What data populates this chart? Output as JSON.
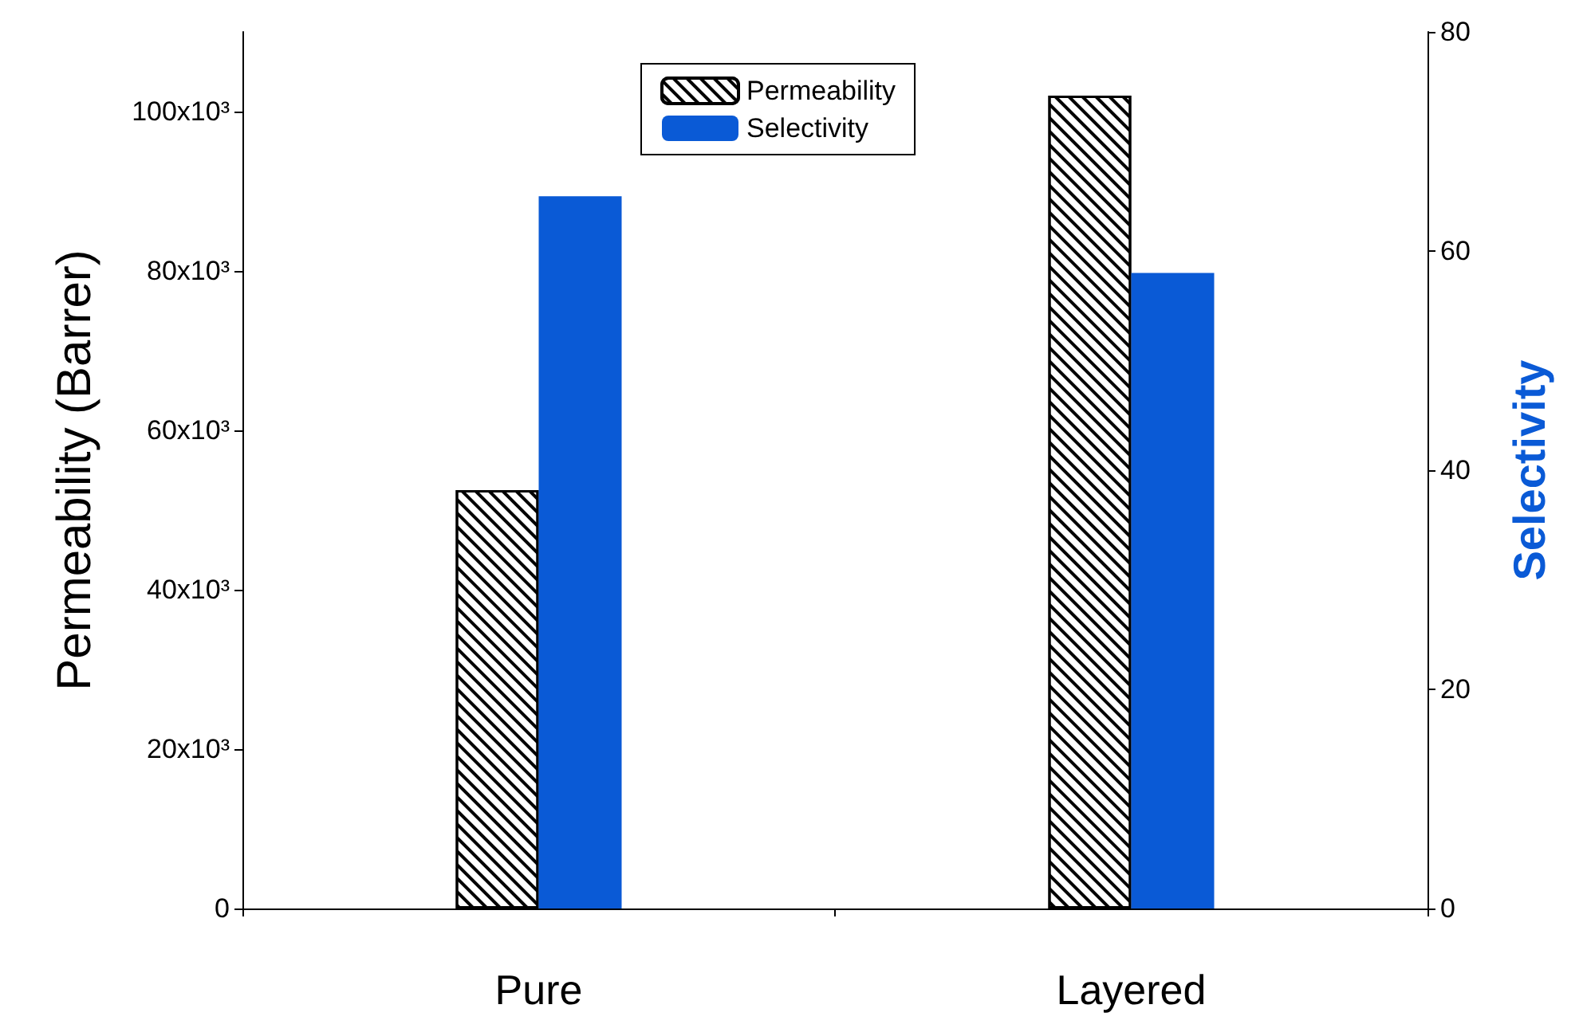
{
  "chart_data": {
    "type": "bar",
    "categories": [
      "Pure",
      "Layered"
    ],
    "series": [
      {
        "name": "Permeability",
        "color": "#ffffff",
        "values": [
          52500,
          102000
        ]
      },
      {
        "name": "Selectivity",
        "color": "#0a5ad6",
        "values": [
          65,
          58
        ],
        "axis": "y2"
      }
    ],
    "ylabel": "Permeability (Barrer)",
    "y2label": "Selectivity",
    "ylim": [
      0,
      110000
    ],
    "yticks": [
      0,
      {
        "value": 20000,
        "label": "20x10³"
      },
      {
        "value": 40000,
        "label": "40x10³"
      },
      {
        "value": 60000,
        "label": "60x10³"
      },
      {
        "value": 80000,
        "label": "80x10³"
      },
      {
        "value": 100000,
        "label": "100x10³"
      }
    ],
    "y2lim": [
      0,
      80
    ],
    "y2ticks": [
      0,
      20,
      40,
      60,
      80
    ],
    "legend": "top",
    "grid": false
  }
}
